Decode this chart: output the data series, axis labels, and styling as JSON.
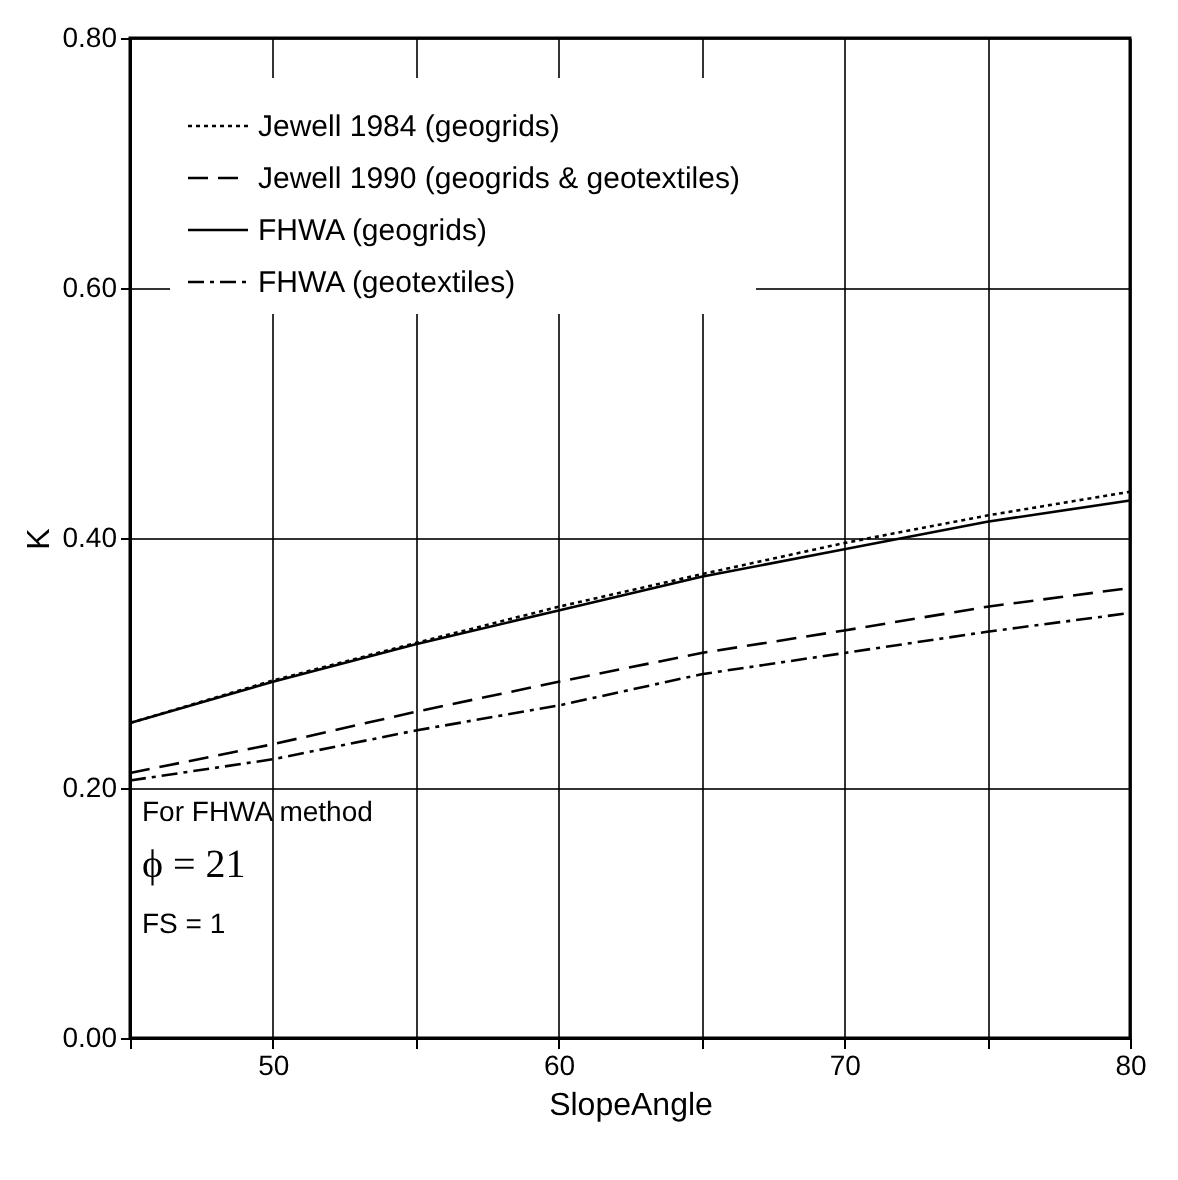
{
  "chart_data": {
    "type": "line",
    "xlabel": "SlopeAngle",
    "ylabel": "K",
    "x": [
      45,
      50,
      55,
      60,
      65,
      70,
      75,
      80
    ],
    "series": [
      {
        "name": "Jewell 1984 (geogrids)",
        "color": "#000000",
        "line_style": "dotted",
        "values": [
          0.252,
          0.286,
          0.316,
          0.345,
          0.371,
          0.396,
          0.418,
          0.437
        ]
      },
      {
        "name": "Jewell 1990 (geogrids & geotextiles)",
        "color": "#000000",
        "line_style": "dashed",
        "values": [
          0.212,
          0.235,
          0.261,
          0.285,
          0.308,
          0.326,
          0.345,
          0.36
        ]
      },
      {
        "name": "FHWA (geogrids)",
        "color": "#000000",
        "line_style": "solid",
        "values": [
          0.252,
          0.285,
          0.315,
          0.342,
          0.369,
          0.391,
          0.413,
          0.43
        ]
      },
      {
        "name": "FHWA (geotextiles)",
        "color": "#000000",
        "line_style": "dashdot",
        "values": [
          0.206,
          0.223,
          0.246,
          0.266,
          0.291,
          0.308,
          0.325,
          0.34
        ]
      }
    ],
    "xlim": [
      45,
      80
    ],
    "xticks": [
      {
        "value": 45,
        "label": null
      },
      50,
      {
        "value": 55,
        "label": null
      },
      60,
      {
        "value": 65,
        "label": null
      },
      70,
      {
        "value": 75,
        "label": null
      },
      80
    ],
    "ylim": [
      0,
      0.8
    ],
    "yticks": [
      {
        "value": 0,
        "label": "0.00"
      },
      {
        "value": 0.2,
        "label": "0.20"
      },
      {
        "value": 0.4,
        "label": "0.40"
      },
      {
        "value": 0.6,
        "label": "0.60"
      },
      {
        "value": 0.8,
        "label": "0.80"
      }
    ],
    "grid": true,
    "legend": "top left",
    "marker": "none",
    "annotations": [
      "For FHWA method",
      "ϕ = 21",
      "FS = 1"
    ]
  }
}
